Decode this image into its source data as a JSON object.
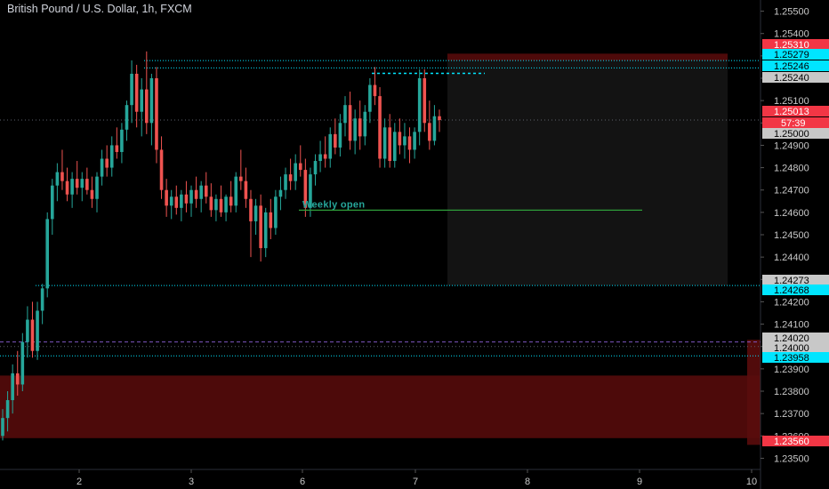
{
  "chart_title": "British Pound / U.S. Dollar, 1h, FXCM",
  "colors": {
    "background": "#000000",
    "up": "#26a69a",
    "down": "#ef5350",
    "cyan": "#00e5ff",
    "red_tag": "#f23645",
    "gray_tag": "#787b86",
    "zone_red": "#5a0c0c",
    "zone_dark": "#131313",
    "weekly_open": "#2e9d3a",
    "purple": "#7e57c2"
  },
  "chart_data": {
    "type": "candlestick",
    "x_ticks": [
      "2",
      "3",
      "6",
      "7",
      "8",
      "9",
      "10"
    ],
    "y_ticks": [
      "1.23500",
      "1.23600",
      "1.23700",
      "1.23800",
      "1.23900",
      "1.24000",
      "1.24100",
      "1.24200",
      "1.24300",
      "1.24400",
      "1.24500",
      "1.24600",
      "1.24700",
      "1.24800",
      "1.24900",
      "1.25000",
      "1.25100",
      "1.25200",
      "1.25300",
      "1.25400",
      "1.25500"
    ],
    "ylim": [
      1.2345,
      1.2555
    ],
    "price_tags": [
      {
        "value": "1.25310",
        "style": "red"
      },
      {
        "value": "1.25279",
        "style": "cyan"
      },
      {
        "value": "1.25246",
        "style": "cyan"
      },
      {
        "value": "1.25240",
        "style": "gray"
      },
      {
        "value": "1.25013",
        "style": "red"
      },
      {
        "value": "57:39",
        "style": "red"
      },
      {
        "value": "1.25000",
        "style": "gray"
      },
      {
        "value": "1.24273",
        "style": "gray"
      },
      {
        "value": "1.24268",
        "style": "cyan"
      },
      {
        "value": "1.24020",
        "style": "gray"
      },
      {
        "value": "1.24000",
        "style": "gray"
      },
      {
        "value": "1.23958",
        "style": "cyan"
      },
      {
        "value": "1.23560",
        "style": "red"
      }
    ],
    "horizontal_lines": [
      {
        "price": 1.25279,
        "style": "cyan-dotted"
      },
      {
        "price": 1.25246,
        "style": "cyan-dotted"
      },
      {
        "price": 1.25013,
        "style": "gray-dotted"
      },
      {
        "price": 1.24273,
        "style": "cyan-dotted"
      },
      {
        "price": 1.2402,
        "style": "purple-dashed"
      },
      {
        "price": 1.24,
        "style": "gray-dotted"
      },
      {
        "price": 1.23958,
        "style": "cyan-dotted"
      }
    ],
    "zones": [
      {
        "top": 1.2531,
        "bottom": 1.25279,
        "style": "red"
      },
      {
        "top": 1.25279,
        "bottom": 1.24273,
        "style": "dark"
      },
      {
        "top": 1.2387,
        "bottom": 1.2359,
        "style": "red"
      }
    ],
    "annotations": [
      {
        "text": "Weekly open",
        "price": 1.2461
      }
    ],
    "candles": [
      [
        1.236,
        1.2372,
        1.2358,
        1.2368
      ],
      [
        1.2368,
        1.238,
        1.2362,
        1.2376
      ],
      [
        1.2376,
        1.2392,
        1.237,
        1.2388
      ],
      [
        1.2388,
        1.2398,
        1.2378,
        1.2383
      ],
      [
        1.2383,
        1.2406,
        1.238,
        1.2402
      ],
      [
        1.2402,
        1.2418,
        1.2395,
        1.2412
      ],
      [
        1.2412,
        1.242,
        1.2395,
        1.2398
      ],
      [
        1.2398,
        1.242,
        1.2394,
        1.2416
      ],
      [
        1.2416,
        1.2428,
        1.241,
        1.2426
      ],
      [
        1.2426,
        1.246,
        1.2422,
        1.2457
      ],
      [
        1.2457,
        1.2475,
        1.245,
        1.2472
      ],
      [
        1.2472,
        1.2482,
        1.2465,
        1.2478
      ],
      [
        1.2478,
        1.2488,
        1.247,
        1.2474
      ],
      [
        1.2474,
        1.248,
        1.2465,
        1.2468
      ],
      [
        1.2468,
        1.2478,
        1.2462,
        1.2475
      ],
      [
        1.2475,
        1.2483,
        1.2468,
        1.2471
      ],
      [
        1.2471,
        1.2478,
        1.2465,
        1.2475
      ],
      [
        1.2475,
        1.248,
        1.2468,
        1.247
      ],
      [
        1.247,
        1.2476,
        1.2462,
        1.2466
      ],
      [
        1.2466,
        1.2478,
        1.246,
        1.2476
      ],
      [
        1.2476,
        1.2488,
        1.2472,
        1.2484
      ],
      [
        1.2484,
        1.249,
        1.2476,
        1.248
      ],
      [
        1.248,
        1.2494,
        1.2476,
        1.249
      ],
      [
        1.249,
        1.2498,
        1.2484,
        1.2487
      ],
      [
        1.2487,
        1.25,
        1.2482,
        1.2497
      ],
      [
        1.2497,
        1.251,
        1.2492,
        1.2508
      ],
      [
        1.2508,
        1.2528,
        1.25,
        1.2522
      ],
      [
        1.2522,
        1.2526,
        1.2498,
        1.2505
      ],
      [
        1.2505,
        1.252,
        1.2494,
        1.2515
      ],
      [
        1.2515,
        1.2532,
        1.2495,
        1.25
      ],
      [
        1.25,
        1.2522,
        1.249,
        1.252
      ],
      [
        1.252,
        1.2525,
        1.2482,
        1.2488
      ],
      [
        1.2488,
        1.2494,
        1.2466,
        1.247
      ],
      [
        1.247,
        1.2475,
        1.2458,
        1.2463
      ],
      [
        1.2463,
        1.247,
        1.2457,
        1.2467
      ],
      [
        1.2467,
        1.2472,
        1.2459,
        1.2462
      ],
      [
        1.2462,
        1.247,
        1.2456,
        1.2468
      ],
      [
        1.2468,
        1.2474,
        1.246,
        1.2464
      ],
      [
        1.2464,
        1.2472,
        1.2458,
        1.247
      ],
      [
        1.247,
        1.2476,
        1.2462,
        1.2466
      ],
      [
        1.2466,
        1.2474,
        1.246,
        1.2472
      ],
      [
        1.2472,
        1.2478,
        1.2464,
        1.2467
      ],
      [
        1.2467,
        1.2473,
        1.2458,
        1.2461
      ],
      [
        1.2461,
        1.2468,
        1.2456,
        1.2466
      ],
      [
        1.2466,
        1.2472,
        1.2458,
        1.246
      ],
      [
        1.246,
        1.2468,
        1.2456,
        1.2467
      ],
      [
        1.2467,
        1.2474,
        1.246,
        1.2463
      ],
      [
        1.2463,
        1.2478,
        1.246,
        1.2476
      ],
      [
        1.2476,
        1.2488,
        1.247,
        1.2474
      ],
      [
        1.2474,
        1.248,
        1.2462,
        1.2466
      ],
      [
        1.2466,
        1.247,
        1.244,
        1.2456
      ],
      [
        1.2456,
        1.2466,
        1.245,
        1.2463
      ],
      [
        1.2463,
        1.2468,
        1.2438,
        1.2444
      ],
      [
        1.2444,
        1.2462,
        1.244,
        1.246
      ],
      [
        1.246,
        1.2466,
        1.2448,
        1.2453
      ],
      [
        1.2453,
        1.247,
        1.245,
        1.2467
      ],
      [
        1.2467,
        1.2476,
        1.2461,
        1.247
      ],
      [
        1.247,
        1.248,
        1.2466,
        1.2477
      ],
      [
        1.2477,
        1.2484,
        1.247,
        1.2474
      ],
      [
        1.2474,
        1.2486,
        1.247,
        1.2482
      ],
      [
        1.2482,
        1.249,
        1.2476,
        1.2479
      ],
      [
        1.2479,
        1.2484,
        1.2458,
        1.2462
      ],
      [
        1.2462,
        1.248,
        1.2458,
        1.2477
      ],
      [
        1.2477,
        1.2486,
        1.2472,
        1.2483
      ],
      [
        1.2483,
        1.2492,
        1.2478,
        1.2486
      ],
      [
        1.2486,
        1.2494,
        1.248,
        1.2484
      ],
      [
        1.2484,
        1.2498,
        1.248,
        1.2495
      ],
      [
        1.2495,
        1.2502,
        1.2486,
        1.2489
      ],
      [
        1.2489,
        1.2504,
        1.2485,
        1.25
      ],
      [
        1.25,
        1.2512,
        1.2494,
        1.2508
      ],
      [
        1.2508,
        1.2514,
        1.2488,
        1.2492
      ],
      [
        1.2492,
        1.2506,
        1.2486,
        1.2502
      ],
      [
        1.2502,
        1.251,
        1.2488,
        1.2494
      ],
      [
        1.2494,
        1.2508,
        1.249,
        1.2505
      ],
      [
        1.2505,
        1.252,
        1.25,
        1.2517
      ],
      [
        1.2517,
        1.2525,
        1.2508,
        1.2512
      ],
      [
        1.2512,
        1.2516,
        1.248,
        1.2484
      ],
      [
        1.2484,
        1.2502,
        1.248,
        1.2498
      ],
      [
        1.2498,
        1.2504,
        1.248,
        1.2483
      ],
      [
        1.2483,
        1.25,
        1.248,
        1.2496
      ],
      [
        1.2496,
        1.2502,
        1.2486,
        1.249
      ],
      [
        1.249,
        1.25,
        1.2484,
        1.2494
      ],
      [
        1.2494,
        1.2498,
        1.2482,
        1.2488
      ],
      [
        1.2488,
        1.2498,
        1.2484,
        1.2496
      ],
      [
        1.2496,
        1.2524,
        1.249,
        1.252
      ],
      [
        1.252,
        1.2524,
        1.2496,
        1.25
      ],
      [
        1.25,
        1.251,
        1.2488,
        1.2492
      ],
      [
        1.2492,
        1.2508,
        1.249,
        1.2503
      ],
      [
        1.2503,
        1.2506,
        1.2496,
        1.25013
      ]
    ]
  }
}
